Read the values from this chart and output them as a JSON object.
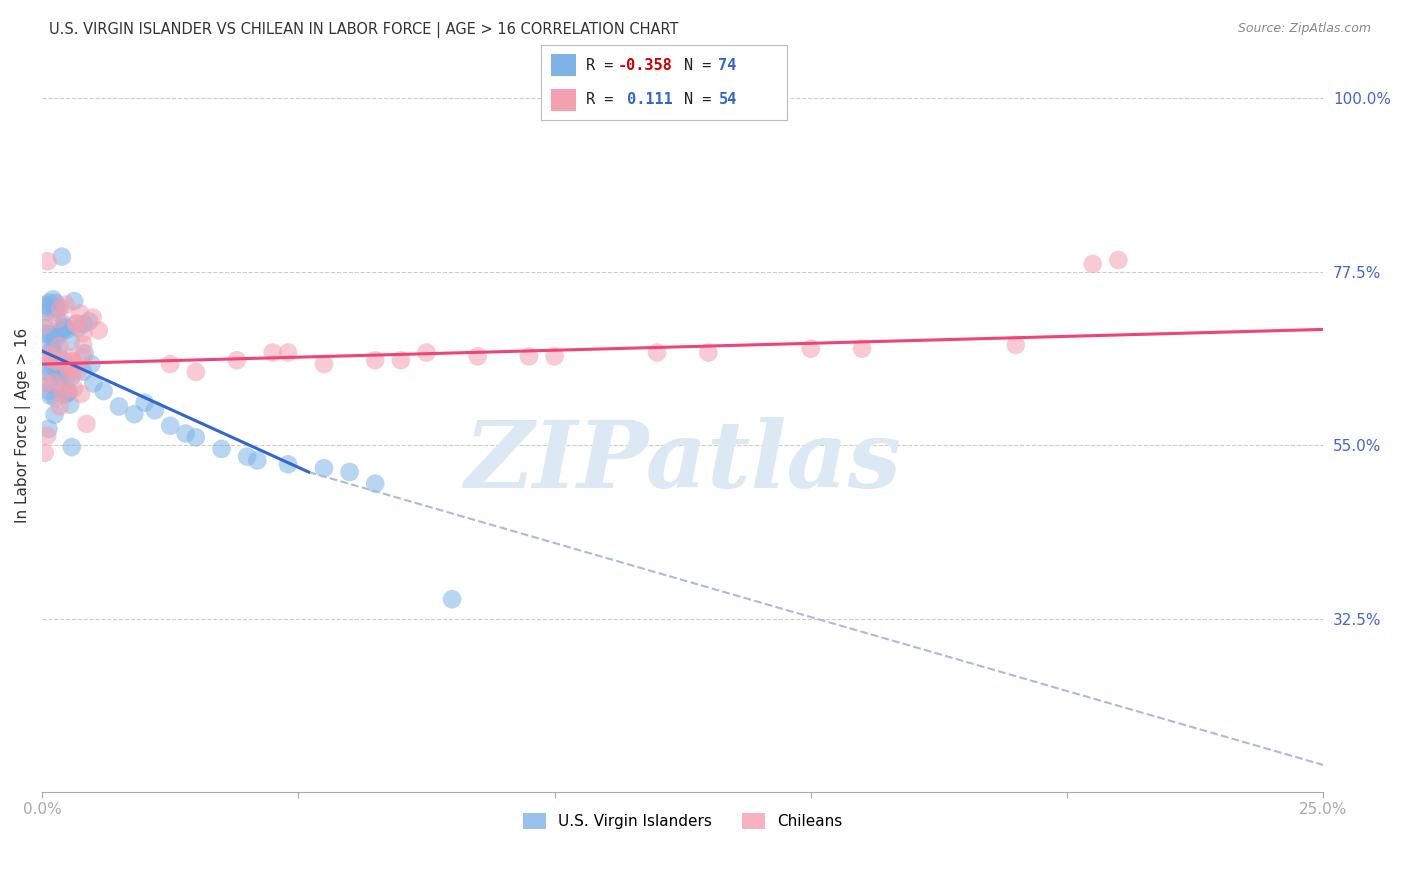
{
  "title": "U.S. VIRGIN ISLANDER VS CHILEAN IN LABOR FORCE | AGE > 16 CORRELATION CHART",
  "source": "Source: ZipAtlas.com",
  "ylabel": "In Labor Force | Age > 16",
  "xlim": [
    0.0,
    0.25
  ],
  "ylim": [
    0.1,
    1.05
  ],
  "xticks": [
    0.0,
    0.05,
    0.1,
    0.15,
    0.2,
    0.25
  ],
  "xticklabels": [
    "0.0%",
    "",
    "",
    "",
    "",
    "25.0%"
  ],
  "yticks_right": [
    1.0,
    0.775,
    0.55,
    0.325
  ],
  "yticklabels_right": [
    "100.0%",
    "77.5%",
    "55.0%",
    "32.5%"
  ],
  "grid_color": "#cccccc",
  "background_color": "#ffffff",
  "blue_color": "#7fb3e8",
  "pink_color": "#f4a0b0",
  "blue_line_color": "#3366cc",
  "pink_line_color": "#ee4477",
  "dashed_line_color": "#aabbdd",
  "watermark_text": "ZIPatlas",
  "watermark_color": "#dde8f5",
  "legend_label1": "U.S. Virgin Islanders",
  "legend_label2": "Chileans",
  "blue_line": {
    "x0": 0.0,
    "x1": 0.052,
    "y0": 0.672,
    "y1": 0.515
  },
  "pink_line": {
    "x0": 0.0,
    "x1": 0.25,
    "y0": 0.655,
    "y1": 0.7
  },
  "dashed_line": {
    "x0": 0.052,
    "x1": 0.25,
    "y0": 0.515,
    "y1": 0.135
  }
}
